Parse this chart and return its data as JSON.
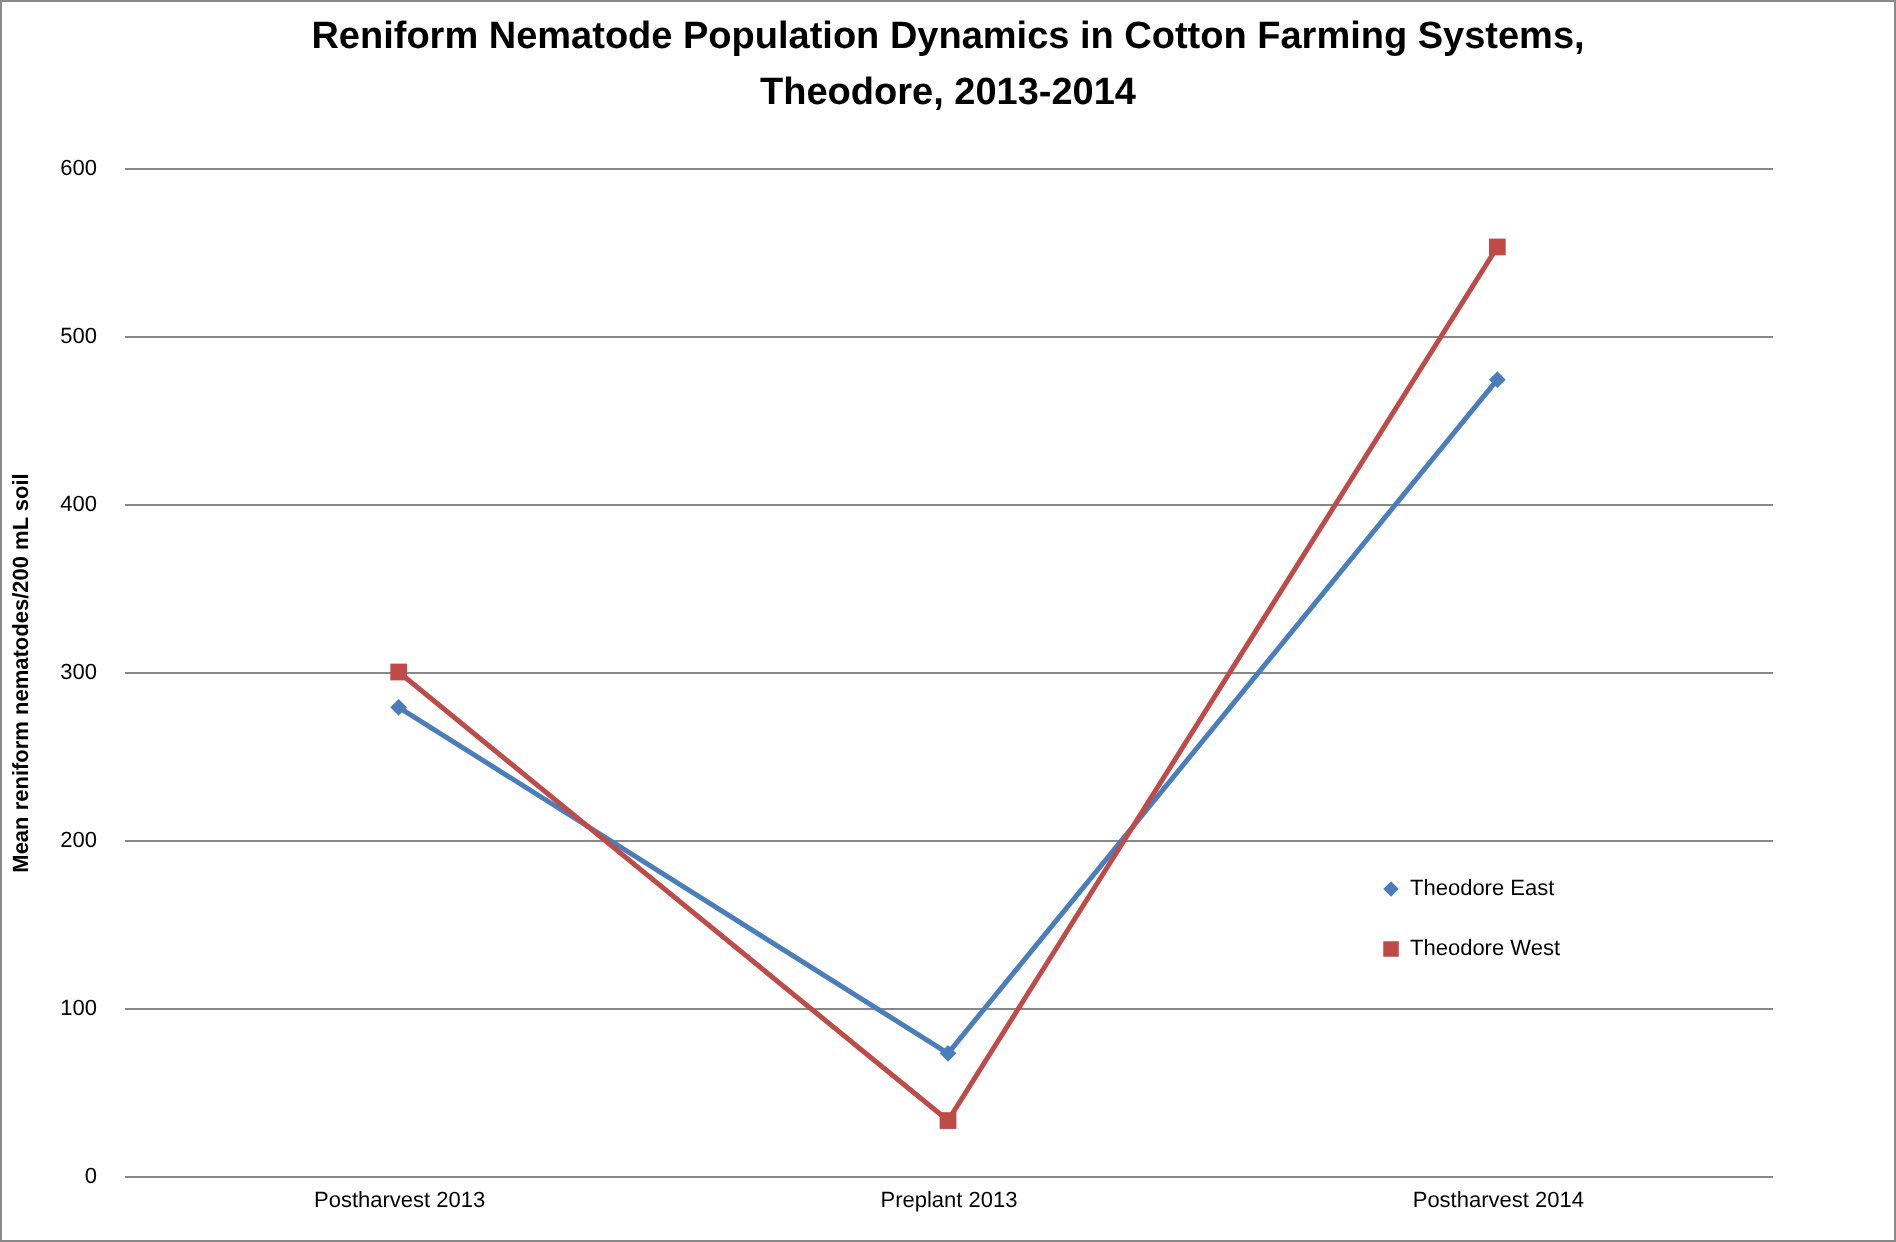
{
  "chart_data": {
    "type": "line",
    "title": "Reniform Nematode Population Dynamics in Cotton Farming Systems, Theodore, 2013-2014",
    "ylabel": "Mean reniform nematodes/200 mL soil",
    "categories": [
      "Postharvest 2013",
      "Preplant 2013",
      "Postharvest 2014"
    ],
    "series": [
      {
        "name": "Theodore East",
        "color": "#4a7ebb",
        "marker": "diamond",
        "values": [
          279,
          73,
          474
        ]
      },
      {
        "name": "Theodore West",
        "color": "#be4b48",
        "marker": "square",
        "values": [
          300,
          33,
          553
        ]
      }
    ],
    "ylim": [
      0,
      600
    ],
    "yticks": [
      0,
      100,
      200,
      300,
      400,
      500,
      600
    ],
    "grid": "y",
    "legend": "right"
  }
}
